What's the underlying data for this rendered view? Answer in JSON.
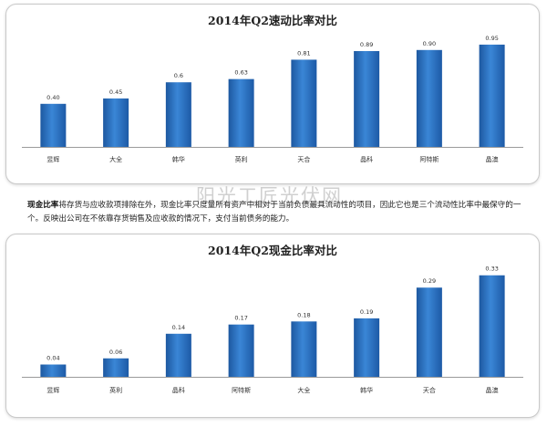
{
  "charts": [
    {
      "type": "bar",
      "title": "2014年Q2速动比率对比",
      "categories": [
        "昱辉",
        "大全",
        "韩华",
        "英利",
        "天合",
        "晶科",
        "阿特斯",
        "晶澳"
      ],
      "value_labels": [
        "0.40",
        "0.45",
        "0.6",
        "0.63",
        "0.81",
        "0.89",
        "0.90",
        "0.95"
      ],
      "ylim": [
        0,
        1.0
      ]
    },
    {
      "type": "bar",
      "title": "2014年Q2现金比率对比",
      "categories": [
        "昱辉",
        "英利",
        "晶科",
        "阿特斯",
        "大全",
        "韩华",
        "天合",
        "晶澳"
      ],
      "value_labels": [
        "0.04",
        "0.06",
        "0.14",
        "0.17",
        "0.18",
        "0.19",
        "0.29",
        "0.33"
      ],
      "ylim": [
        0,
        0.35
      ]
    }
  ],
  "chart_data": [
    {
      "type": "bar",
      "title": "2014年Q2速动比率对比",
      "categories": [
        "昱辉",
        "大全",
        "韩华",
        "英利",
        "天合",
        "晶科",
        "阿特斯",
        "晶澳"
      ],
      "values": [
        0.4,
        0.45,
        0.6,
        0.63,
        0.81,
        0.89,
        0.9,
        0.95
      ],
      "xlabel": "",
      "ylabel": "",
      "ylim": [
        0,
        1.0
      ],
      "grid": false,
      "bar_color": "#2a6ebd"
    },
    {
      "type": "bar",
      "title": "2014年Q2现金比率对比",
      "categories": [
        "昱辉",
        "英利",
        "晶科",
        "阿特斯",
        "大全",
        "韩华",
        "天合",
        "晶澳"
      ],
      "values": [
        0.04,
        0.06,
        0.14,
        0.17,
        0.18,
        0.19,
        0.29,
        0.33
      ],
      "xlabel": "",
      "ylabel": "",
      "ylim": [
        0,
        0.35
      ],
      "grid": false,
      "bar_color": "#2a6ebd"
    }
  ],
  "note": {
    "term": "现金比率",
    "text": "将存货与应收款项排除在外，现金比率只度量所有资产中相对于当前负债最具流动性的项目，因此它也是三个流动性比率中最保守的一个。反映出公司在不依靠存货销售及应收款的情况下，支付当前债务的能力。"
  },
  "watermark": "阳光工匠光伏网"
}
